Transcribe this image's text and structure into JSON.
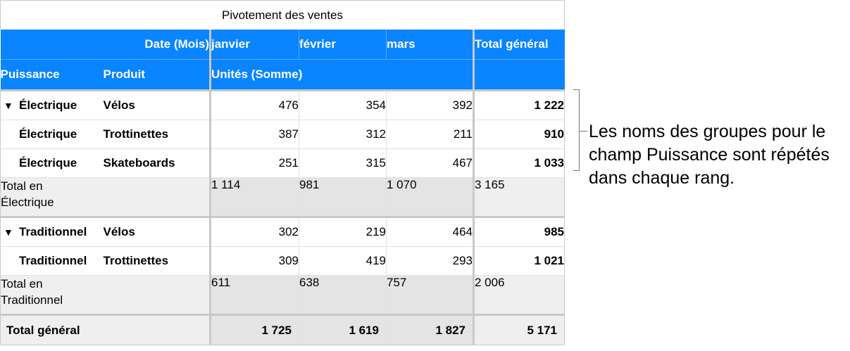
{
  "table": {
    "title": "Pivotement des ventes",
    "header1": {
      "col_label": "Date (Mois)",
      "months": [
        "janvier",
        "février",
        "mars"
      ],
      "grand_total": "Total général"
    },
    "header2": {
      "row_field_1": "Puissance",
      "row_field_2": "Produit",
      "value_field": "Unités (Somme)"
    },
    "groups": [
      {
        "rows": [
          {
            "group": "Électrique",
            "product": "Vélos",
            "values": [
              "476",
              "354",
              "392"
            ],
            "total": "1 222",
            "expanded": true
          },
          {
            "group": "Électrique",
            "product": "Trottinettes",
            "values": [
              "387",
              "312",
              "211"
            ],
            "total": "910",
            "expanded": false
          },
          {
            "group": "Électrique",
            "product": "Skateboards",
            "values": [
              "251",
              "315",
              "467"
            ],
            "total": "1 033",
            "expanded": false
          }
        ],
        "subtotal": {
          "label_line1": "Total en",
          "label_line2": "Électrique",
          "values": [
            "1 114",
            "981",
            "1 070"
          ],
          "total": "3 165"
        }
      },
      {
        "rows": [
          {
            "group": "Traditionnel",
            "product": "Vélos",
            "values": [
              "302",
              "219",
              "464"
            ],
            "total": "985",
            "expanded": true
          },
          {
            "group": "Traditionnel",
            "product": "Trottinettes",
            "values": [
              "309",
              "419",
              "293"
            ],
            "total": "1 021",
            "expanded": false
          }
        ],
        "subtotal": {
          "label_line1": "Total en",
          "label_line2": "Traditionnel",
          "values": [
            "611",
            "638",
            "757"
          ],
          "total": "2 006"
        }
      }
    ],
    "grand_total_row": {
      "label": "Total général",
      "values": [
        "1 725",
        "1 619",
        "1 827"
      ],
      "total": "5 171"
    }
  },
  "callout": {
    "text": "Les noms des groupes pour le champ Puissance sont répétés dans chaque rang."
  },
  "colors": {
    "header_blue": "#0a84ff",
    "subtotal_gray": "#efefef"
  },
  "icons": {
    "expand": "disclosure-triangle-down-icon"
  }
}
